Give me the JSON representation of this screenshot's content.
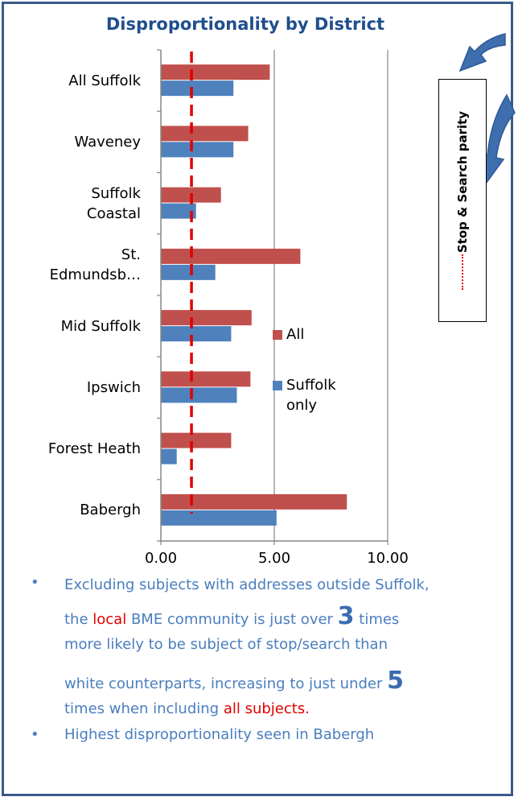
{
  "chart_data": {
    "type": "bar",
    "orientation": "horizontal",
    "title": "Disproportionality by District",
    "categories": [
      "All Suffolk",
      "Waveney",
      "Suffolk Coastal",
      "St. Edmundsb…",
      "Mid Suffolk",
      "Ipswich",
      "Forest Heath",
      "Babergh"
    ],
    "category_display": [
      [
        "All Suffolk"
      ],
      [
        "Waveney"
      ],
      [
        "Suffolk",
        "Coastal"
      ],
      [
        "St.",
        "Edmundsb…"
      ],
      [
        "Mid Suffolk"
      ],
      [
        "Ipswich"
      ],
      [
        "Forest Heath"
      ],
      [
        "Babergh"
      ]
    ],
    "series": [
      {
        "name": "All",
        "color": "#c0504d",
        "values": [
          4.8,
          3.85,
          2.65,
          6.15,
          4.0,
          3.95,
          3.1,
          8.2
        ]
      },
      {
        "name": "Suffolk only",
        "color": "#4f81bd",
        "values": [
          3.2,
          3.2,
          1.55,
          2.4,
          3.1,
          3.35,
          0.7,
          5.1
        ]
      }
    ],
    "xlim": [
      0,
      10
    ],
    "xticks": [
      "0.00",
      "5.00",
      "10.00"
    ],
    "xtick_values": [
      0,
      5,
      10
    ],
    "parity_line": 1.35,
    "grid": true,
    "legend_position": "right",
    "legend_labels": [
      "All",
      "Suffolk",
      "only"
    ]
  },
  "parity_legend": {
    "label": "Stop & Search parity",
    "line_color": "#e00000"
  },
  "notes": {
    "bullet1": {
      "part1": "Excluding subjects with addresses outside Suffolk,",
      "part2": "the ",
      "local": "local",
      "part3": "  BME community is just over ",
      "num3": "3",
      "part4": "  times",
      "part5": "more likely to be subject of stop/search than",
      "part6": "white counterparts, increasing to just under ",
      "num5": "5",
      "part7": "times when including  ",
      "all_subjects": "all subjects."
    },
    "bullet2": "Highest disproportionality seen in Babergh",
    "bullet_char": "•"
  },
  "colors": {
    "border": "#3a5a89",
    "arrow": "#3f6eae",
    "title": "#1f4e8c",
    "notes": "#4a7ebf"
  }
}
